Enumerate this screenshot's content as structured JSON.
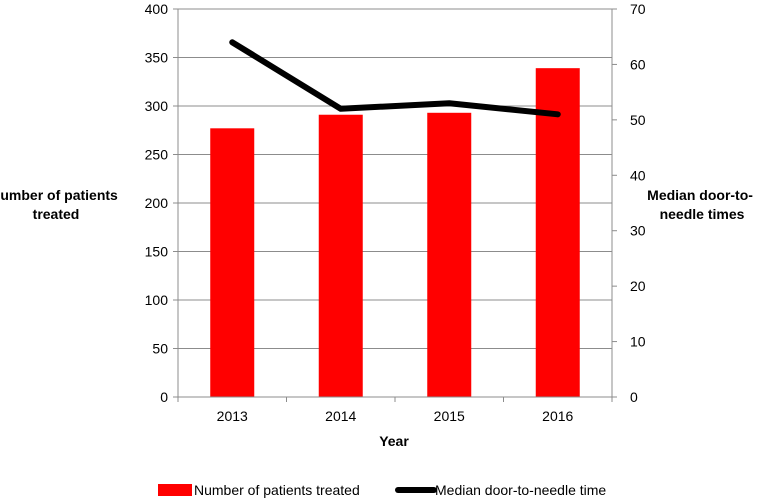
{
  "chart_data": {
    "type": "bar",
    "categories": [
      "2013",
      "2014",
      "2015",
      "2016"
    ],
    "xlabel": "Year",
    "ylabel_left": [
      "Number of patients",
      "treated"
    ],
    "ylabel_right": [
      "Median door-to-",
      "needle times"
    ],
    "ylim_left": [
      0,
      400
    ],
    "ylim_right": [
      0,
      70
    ],
    "yticks_left": [
      "0",
      "50",
      "100",
      "150",
      "200",
      "250",
      "300",
      "350",
      "400"
    ],
    "yticks_right": [
      "0",
      "10",
      "20",
      "30",
      "40",
      "50",
      "60",
      "70"
    ],
    "grid": true,
    "legend_position": "bottom",
    "series": [
      {
        "name": "Number of patients treated",
        "type": "bar",
        "axis": "left",
        "color": "#ff0000",
        "values": [
          277,
          291,
          293,
          339
        ]
      },
      {
        "name": "Median door-to-needle time",
        "type": "line",
        "axis": "right",
        "color": "#000000",
        "values": [
          64,
          52,
          53,
          51
        ]
      }
    ]
  }
}
